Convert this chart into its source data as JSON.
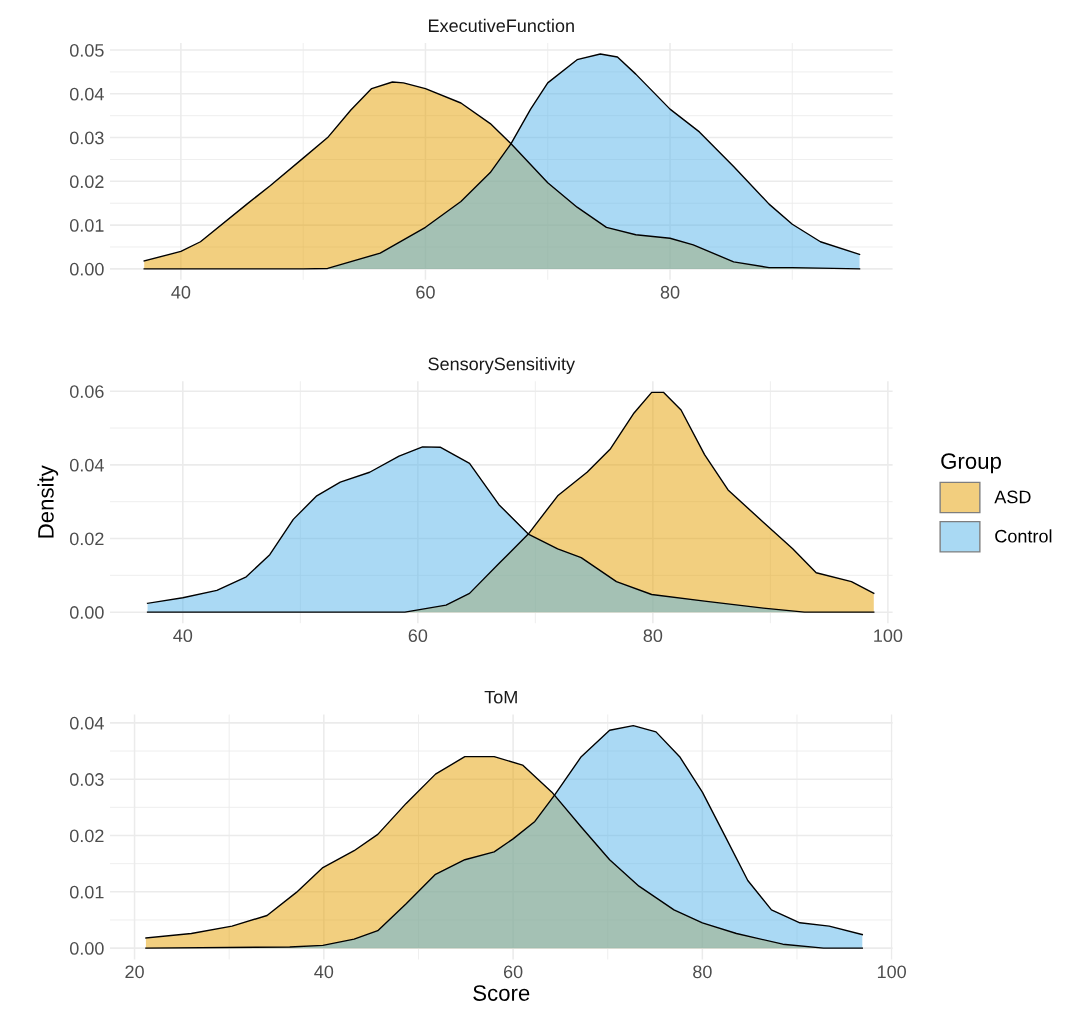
{
  "chart_data": [
    {
      "type": "area",
      "title": "ExecutiveFunction",
      "legend": false,
      "grid": true,
      "xlim": [
        34.2,
        98.2
      ],
      "ylim": [
        -0.0025,
        0.0516
      ],
      "xticks": [
        40,
        {
          "value": 50,
          "label": null
        },
        60,
        {
          "value": 70,
          "label": null
        },
        80,
        {
          "value": 90,
          "label": null
        }
      ],
      "yticks": [
        {
          "value": 0,
          "label": "0.00"
        },
        {
          "value": 0.005,
          "label": null
        },
        {
          "value": 0.01,
          "label": "0.01"
        },
        {
          "value": 0.015,
          "label": null
        },
        {
          "value": 0.02,
          "label": "0.02"
        },
        {
          "value": 0.025,
          "label": null
        },
        {
          "value": 0.03,
          "label": "0.03"
        },
        {
          "value": 0.035,
          "label": null
        },
        {
          "value": 0.04,
          "label": "0.04"
        },
        {
          "value": 0.045,
          "label": null
        },
        {
          "value": 0.05,
          "label": "0.05"
        }
      ],
      "series": [
        {
          "color": "#e69f00",
          "x": [
            37,
            40,
            41.6,
            45.4,
            47.3,
            50,
            52,
            53.9,
            55.6,
            57.3,
            58.2,
            60,
            62.9,
            65.3,
            67,
            70,
            72.4,
            74.8,
            77.2,
            80,
            81.9,
            85.2,
            88.1,
            90,
            95.5
          ],
          "values": [
            0.0018,
            0.004,
            0.0062,
            0.0148,
            0.019,
            0.0253,
            0.03,
            0.0363,
            0.0412,
            0.0427,
            0.0425,
            0.0412,
            0.0379,
            0.0332,
            0.0286,
            0.0197,
            0.0141,
            0.0095,
            0.0078,
            0.007,
            0.0055,
            0.0016,
            0.0003,
            0.0003,
            0
          ]
        },
        {
          "color": "#56b4e9",
          "x": [
            37,
            50,
            52,
            56.3,
            60,
            62.9,
            65.3,
            67,
            68.6,
            70,
            72.4,
            74.3,
            75.7,
            77.2,
            80,
            82.4,
            85.2,
            88.1,
            90,
            92.3,
            95.5
          ],
          "values": [
            0,
            0,
            0.0001,
            0.0036,
            0.0095,
            0.0154,
            0.022,
            0.0286,
            0.0365,
            0.0425,
            0.0478,
            0.0491,
            0.0484,
            0.0445,
            0.0365,
            0.0313,
            0.0234,
            0.0148,
            0.0102,
            0.0062,
            0.0033
          ]
        }
      ]
    },
    {
      "type": "area",
      "title": "SensorySensitivity",
      "ylabel": "Density",
      "legend": "right",
      "legend_title": "Group",
      "grid": true,
      "xlim": [
        33.8,
        100.4
      ],
      "ylim": [
        -0.003,
        0.0627
      ],
      "xticks": [
        40,
        {
          "value": 50,
          "label": null
        },
        60,
        {
          "value": 70,
          "label": null
        },
        80,
        {
          "value": 90,
          "label": null
        },
        100
      ],
      "yticks": [
        {
          "value": 0,
          "label": "0.00"
        },
        {
          "value": 0.01,
          "label": null
        },
        {
          "value": 0.02,
          "label": "0.02"
        },
        {
          "value": 0.03,
          "label": null
        },
        {
          "value": 0.04,
          "label": "0.04"
        },
        {
          "value": 0.05,
          "label": null
        },
        {
          "value": 0.06,
          "label": "0.06"
        }
      ],
      "series": [
        {
          "name": "ASD",
          "color": "#e69f00",
          "x": [
            37,
            58.9,
            62.4,
            64.4,
            66.9,
            69.4,
            71.9,
            74.4,
            76.4,
            78.4,
            79.9,
            80.9,
            82.4,
            84.4,
            86.4,
            89.4,
            91.9,
            93.9,
            96.9,
            98.8
          ],
          "values": [
            0,
            0,
            0.0019,
            0.0051,
            0.0132,
            0.0212,
            0.0316,
            0.038,
            0.0444,
            0.0541,
            0.0597,
            0.0597,
            0.0549,
            0.0428,
            0.0332,
            0.0244,
            0.0172,
            0.0107,
            0.0083,
            0.0051
          ]
        },
        {
          "name": "Control",
          "color": "#56b4e9",
          "x": [
            37,
            40,
            42.9,
            45.4,
            47.4,
            49.4,
            51.4,
            53.4,
            55.9,
            58.4,
            60.4,
            61.9,
            64.4,
            66.9,
            69.4,
            71.9,
            73.9,
            76.9,
            79.9,
            84.4,
            89.4,
            92.9,
            98.8
          ],
          "values": [
            0.0024,
            0.0039,
            0.0059,
            0.0096,
            0.0156,
            0.0252,
            0.0316,
            0.0353,
            0.038,
            0.0424,
            0.0449,
            0.0448,
            0.0404,
            0.0292,
            0.0212,
            0.0172,
            0.0148,
            0.0083,
            0.0048,
            0.003,
            0.0011,
            0,
            0
          ]
        }
      ]
    },
    {
      "type": "area",
      "title": "ToM",
      "xlabel": "Score",
      "legend": false,
      "grid": true,
      "xlim": [
        17.4,
        100.1
      ],
      "ylim": [
        -0.002,
        0.0415
      ],
      "xticks": [
        20,
        {
          "value": 30,
          "label": null
        },
        40,
        {
          "value": 50,
          "label": null
        },
        60,
        {
          "value": 70,
          "label": null
        },
        80,
        {
          "value": 90,
          "label": null
        },
        100
      ],
      "yticks": [
        {
          "value": 0,
          "label": "0.00"
        },
        {
          "value": 0.005,
          "label": null
        },
        {
          "value": 0.01,
          "label": "0.01"
        },
        {
          "value": 0.015,
          "label": null
        },
        {
          "value": 0.02,
          "label": "0.02"
        },
        {
          "value": 0.025,
          "label": null
        },
        {
          "value": 0.03,
          "label": "0.03"
        },
        {
          "value": 0.035,
          "label": null
        },
        {
          "value": 0.04,
          "label": "0.04"
        }
      ],
      "series": [
        {
          "color": "#e69f00",
          "x": [
            21.2,
            26,
            30.3,
            34,
            37.1,
            39.9,
            43.2,
            45.7,
            48.7,
            51.8,
            54.9,
            58,
            61,
            64.1,
            67.2,
            70.2,
            73.3,
            77,
            80,
            83.6,
            88.5,
            92.8,
            96.9
          ],
          "values": [
            0.0018,
            0.0026,
            0.0039,
            0.0058,
            0.0099,
            0.0143,
            0.0173,
            0.0202,
            0.0257,
            0.0309,
            0.034,
            0.034,
            0.0325,
            0.0277,
            0.0215,
            0.0157,
            0.011,
            0.0068,
            0.0045,
            0.0026,
            0.0007,
            0,
            0
          ]
        },
        {
          "color": "#56b4e9",
          "x": [
            21.2,
            36.4,
            39.9,
            43.2,
            45.7,
            48.7,
            51.8,
            54.9,
            58,
            60,
            62.3,
            64.4,
            67.2,
            70.2,
            72.7,
            75.1,
            77.6,
            80,
            82.4,
            84.8,
            87.3,
            90.3,
            93.4,
            96.9
          ],
          "values": [
            0,
            0.0002,
            0.0005,
            0.0016,
            0.0031,
            0.0079,
            0.0131,
            0.0157,
            0.0171,
            0.0194,
            0.0225,
            0.0272,
            0.034,
            0.0387,
            0.0395,
            0.0384,
            0.034,
            0.0277,
            0.0199,
            0.012,
            0.0068,
            0.0045,
            0.0039,
            0.0024
          ]
        }
      ]
    }
  ]
}
